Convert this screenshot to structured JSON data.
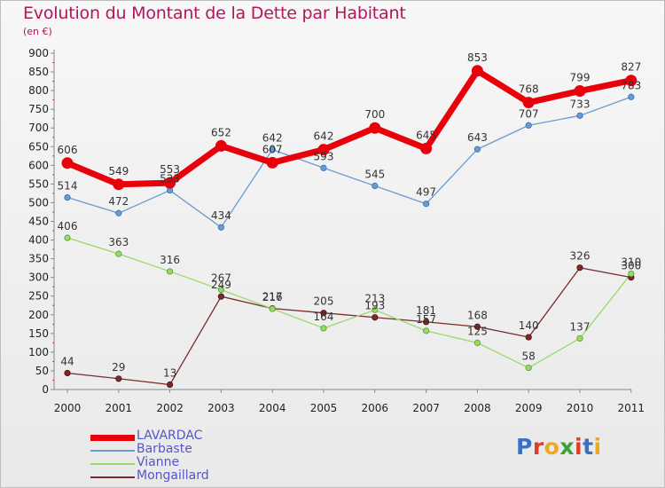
{
  "title": "Evolution du Montant de la Dette par Habitant",
  "subtitle": "(en €)",
  "logo": {
    "text": "Proxiti",
    "colors": [
      "#3d6fc4",
      "#e03c2a",
      "#f2a81d",
      "#3aa13a",
      "#e03c2a",
      "#3d6fc4",
      "#f2a81d"
    ]
  },
  "chart_data": {
    "type": "line",
    "x": [
      "2000",
      "2001",
      "2002",
      "2003",
      "2004",
      "2005",
      "2006",
      "2007",
      "2008",
      "2009",
      "2010",
      "2011"
    ],
    "ylim": [
      0,
      900
    ],
    "yticks": [
      0,
      50,
      100,
      150,
      200,
      250,
      300,
      350,
      400,
      450,
      500,
      550,
      600,
      650,
      700,
      750,
      800,
      850,
      900
    ],
    "grid": false,
    "legend_position": "bottom-left",
    "series": [
      {
        "name": "LAVARDAC",
        "color": "#e8000b",
        "values": [
          606,
          549,
          553,
          652,
          607,
          642,
          700,
          645,
          853,
          768,
          799,
          827
        ]
      },
      {
        "name": "Barbaste",
        "color": "#6a9bd1",
        "values": [
          514,
          472,
          533,
          434,
          642,
          593,
          545,
          497,
          643,
          707,
          733,
          783
        ]
      },
      {
        "name": "Vianne",
        "color": "#99d96a",
        "values": [
          406,
          363,
          316,
          267,
          216,
          164,
          213,
          157,
          125,
          58,
          137,
          310
        ]
      },
      {
        "name": "Mongaillard",
        "color": "#7a2a2a",
        "values": [
          44,
          29,
          13,
          249,
          217,
          205,
          193,
          181,
          168,
          140,
          326,
          300
        ]
      }
    ]
  }
}
